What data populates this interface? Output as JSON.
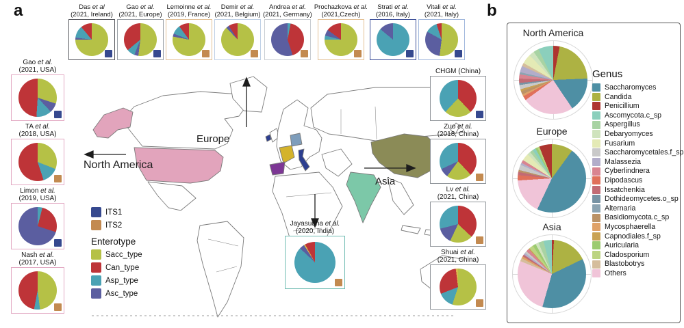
{
  "panel_a_label": "a",
  "panel_b_label": "b",
  "map_labels": {
    "europe": "Europe",
    "north_america": "North America",
    "asia": "Asia"
  },
  "its_legend": {
    "items": [
      {
        "label": "ITS1",
        "color": "#36498F"
      },
      {
        "label": "ITS2",
        "color": "#C38A50"
      }
    ]
  },
  "enterotype_legend": {
    "title": "Enterotype",
    "items": [
      {
        "label": "Sacc_type",
        "color": "#B5C146"
      },
      {
        "label": "Can_type",
        "color": "#BE3438"
      },
      {
        "label": "Asp_type",
        "color": "#4AA2B4"
      },
      {
        "label": "Asc_type",
        "color": "#5B5EA0"
      }
    ]
  },
  "map_colors": {
    "usa": "#E2A4BC",
    "alaska": "#E2A4BC",
    "ireland": "#2C3E90",
    "france": "#D4B32B",
    "germany": "#7E9DBB",
    "spain": "#7D3795",
    "italy": "#2C3E90",
    "china": "#8B8B57",
    "india": "#7CC8A8"
  },
  "chart_data": {
    "type": "pie",
    "enterotype_colors": {
      "Sacc_type": "#B5C146",
      "Can_type": "#BE3438",
      "Asp_type": "#4AA2B4",
      "Asc_type": "#5B5EA0",
      "Other": "#D8B94B"
    },
    "panel_a": {
      "top": [
        {
          "name": "Das",
          "etal": "et al",
          "info": "(2021, Ireland)",
          "its": "ITS1",
          "border": "#55565C",
          "slices": [
            [
              "Sacc_type",
              75
            ],
            [
              "Asc_type",
              2
            ],
            [
              "Asp_type",
              12
            ],
            [
              "Can_type",
              11
            ]
          ]
        },
        {
          "name": "Gao",
          "etal": "et al.",
          "info": "(2021, Europe)",
          "its": "ITS1",
          "border": "#9AA0A6",
          "slices": [
            [
              "Sacc_type",
              52
            ],
            [
              "Asc_type",
              4
            ],
            [
              "Asp_type",
              8
            ],
            [
              "Can_type",
              36
            ]
          ]
        },
        {
          "name": "Lemoinne",
          "etal": "et al.",
          "info": "(2019, France)",
          "its": "ITS2",
          "border": "#E3C094",
          "slices": [
            [
              "Sacc_type",
              78
            ],
            [
              "Asc_type",
              3
            ],
            [
              "Asp_type",
              9
            ],
            [
              "Can_type",
              10
            ]
          ]
        },
        {
          "name": "Demir",
          "etal": "et al.",
          "info": "(2021, Belgium)",
          "its": "ITS2",
          "border": "#BFD0E6",
          "slices": [
            [
              "Sacc_type",
              88
            ],
            [
              "Asc_type",
              3
            ],
            [
              "Can_type",
              9
            ]
          ]
        },
        {
          "name": "Andrea",
          "etal": "et al.",
          "info": "(2021, Germany)",
          "its": "ITS2",
          "border": "#C9CDD2",
          "slices": [
            [
              "Asp_type",
              3
            ],
            [
              "Can_type",
              42
            ],
            [
              "Asc_type",
              55
            ]
          ]
        },
        {
          "name": "Prochazkova",
          "etal": "et al.",
          "info": "(2021,Czech)",
          "its": "ITS2",
          "border": "#E3C094",
          "slices": [
            [
              "Sacc_type",
              75
            ],
            [
              "Asp_type",
              4
            ],
            [
              "Asc_type",
              6
            ],
            [
              "Can_type",
              15
            ]
          ]
        },
        {
          "name": "Strati",
          "etal": "et al.",
          "info": "(2016, Italy)",
          "its": "ITS1",
          "border": "#3A4C97",
          "slices": [
            [
              "Asp_type",
              86
            ],
            [
              "Asc_type",
              14
            ]
          ]
        },
        {
          "name": "Vitali",
          "etal": "et al.",
          "info": "(2021, Italy)",
          "its": "ITS1",
          "border": "#9FB6DC",
          "slices": [
            [
              "Sacc_type",
              52
            ],
            [
              "Asc_type",
              31
            ],
            [
              "Asp_type",
              12
            ],
            [
              "Can_type",
              5
            ]
          ]
        }
      ],
      "left": [
        {
          "name": "Gao",
          "etal": "et al.",
          "info": "(2021, USA)",
          "its": "ITS1",
          "border": "#E2A8C2",
          "slices": [
            [
              "Sacc_type",
              30
            ],
            [
              "Asc_type",
              8
            ],
            [
              "Asp_type",
              13
            ],
            [
              "Can_type",
              49
            ]
          ]
        },
        {
          "name": "TA",
          "etal": "et al.",
          "info": "(2018, USA)",
          "its": "ITS2",
          "border": "#E2A8C2",
          "slices": [
            [
              "Sacc_type",
              31
            ],
            [
              "Asp_type",
              14
            ],
            [
              "Can_type",
              55
            ]
          ]
        },
        {
          "name": "Limon",
          "etal": "et al.",
          "info": "(2019, USA)",
          "its": "ITS1",
          "border": "#E2A8C2",
          "slices": [
            [
              "Asp_type",
              4
            ],
            [
              "Can_type",
              26
            ],
            [
              "Asc_type",
              70
            ]
          ]
        },
        {
          "name": "Nash",
          "etal": "et al.",
          "info": "(2017, USA)",
          "its": "ITS2",
          "border": "#E2A8C2",
          "slices": [
            [
              "Sacc_type",
              48
            ],
            [
              "Asp_type",
              5
            ],
            [
              "Can_type",
              47
            ]
          ]
        }
      ],
      "right": [
        {
          "name": "CHGM",
          "etal": "",
          "info": "(China)",
          "one_line": true,
          "its": "ITS1",
          "border": "#8F9499",
          "slices": [
            [
              "Can_type",
              38
            ],
            [
              "Sacc_type",
              24
            ],
            [
              "Asp_type",
              38
            ]
          ]
        },
        {
          "name": "Zuo",
          "etal": "et al.",
          "info": "(2018, China)",
          "its": "ITS2",
          "border": "#8F9499",
          "slices": [
            [
              "Can_type",
              38
            ],
            [
              "Sacc_type",
              22
            ],
            [
              "Asc_type",
              8
            ],
            [
              "Asp_type",
              32
            ]
          ]
        },
        {
          "name": "Lv",
          "etal": "et al.",
          "info": "(2021, China)",
          "its": "ITS2",
          "border": "#8F9499",
          "slices": [
            [
              "Can_type",
              37
            ],
            [
              "Sacc_type",
              20
            ],
            [
              "Asc_type",
              14
            ],
            [
              "Asp_type",
              29
            ]
          ]
        },
        {
          "name": "Shuai",
          "etal": "et al.",
          "info": "(2021, China)",
          "its": "ITS2",
          "border": "#8F9499",
          "slices": [
            [
              "Sacc_type",
              55
            ],
            [
              "Asp_type",
              14
            ],
            [
              "Can_type",
              29
            ],
            [
              "Other",
              2
            ]
          ]
        }
      ],
      "india": {
        "name": "Jayasudha",
        "etal": "et al.",
        "info": "(2020, India)",
        "its": "ITS2",
        "border": "#6FBBB2",
        "slices": [
          [
            "Asp_type",
            87
          ],
          [
            "Asc_type",
            4
          ],
          [
            "Other",
            1
          ],
          [
            "Can_type",
            8
          ]
        ]
      }
    },
    "panel_b": {
      "genus_legend_title": "Genus",
      "genus": [
        {
          "label": "Saccharomyces",
          "color": "#4E8FA4"
        },
        {
          "label": "Candida",
          "color": "#ADB243"
        },
        {
          "label": "Penicillium",
          "color": "#AE352F"
        },
        {
          "label": "Ascomycota.c_sp",
          "color": "#8BCFBC"
        },
        {
          "label": "Aspergillus",
          "color": "#A8D3A3"
        },
        {
          "label": "Debaryomyces",
          "color": "#CFE3BD"
        },
        {
          "label": "Fusarium",
          "color": "#E4EAB5"
        },
        {
          "label": "Saccharomycetales.f_sp",
          "color": "#C9C9C9"
        },
        {
          "label": "Malassezia",
          "color": "#B2ADCA"
        },
        {
          "label": "Cyberlindnera",
          "color": "#D98490"
        },
        {
          "label": "Dipodascus",
          "color": "#E0705A"
        },
        {
          "label": "Issatchenkia",
          "color": "#C26B74"
        },
        {
          "label": "Dothideomycetes.o_sp",
          "color": "#7793A4"
        },
        {
          "label": "Alternaria",
          "color": "#8CA4B2"
        },
        {
          "label": "Basidiomycota.c_sp",
          "color": "#BB9266"
        },
        {
          "label": "Mycosphaerella",
          "color": "#DFA167"
        },
        {
          "label": "Capnodiales.f_sp",
          "color": "#C9A253"
        },
        {
          "label": "Auricularia",
          "color": "#9CCB70"
        },
        {
          "label": "Cladosporium",
          "color": "#BCD481"
        },
        {
          "label": "Blastobotrys",
          "color": "#D5BD9C"
        },
        {
          "label": "Others",
          "color": "#F0C4D8"
        }
      ],
      "regions": [
        {
          "title": "North America",
          "slices": [
            [
              "Penicillium",
              3
            ],
            [
              "Candida",
              21
            ],
            [
              "Saccharomyces",
              16
            ],
            [
              "Others",
              24
            ],
            [
              "Dipodascus",
              2
            ],
            [
              "Mycosphaerella",
              1
            ],
            [
              "Basidiomycota.c_sp",
              1.5
            ],
            [
              "Capnodiales.f_sp",
              1
            ],
            [
              "Saccharomycetales.f_sp",
              2
            ],
            [
              "Dothideomycetes.o_sp",
              1
            ],
            [
              "Issatchenkia",
              2
            ],
            [
              "Cyberlindnera",
              2
            ],
            [
              "Alternaria",
              1
            ],
            [
              "Malassezia",
              3
            ],
            [
              "Blastobotrys",
              1.5
            ],
            [
              "Fusarium",
              4.5
            ],
            [
              "Debaryomyces",
              2.5
            ],
            [
              "Aspergillus",
              2.5
            ],
            [
              "Ascomycota.c_sp",
              7
            ]
          ]
        },
        {
          "title": "Europe",
          "slices": [
            [
              "Candida",
              10
            ],
            [
              "Saccharomyces",
              47
            ],
            [
              "Others",
              17
            ],
            [
              "Dipodascus",
              2.5
            ],
            [
              "Issatchenkia",
              1.5
            ],
            [
              "Basidiomycota.c_sp",
              1
            ],
            [
              "Saccharomycetales.f_sp",
              2.5
            ],
            [
              "Malassezia",
              1
            ],
            [
              "Cyberlindnera",
              1.5
            ],
            [
              "Fusarium",
              3.5
            ],
            [
              "Debaryomyces",
              1.5
            ],
            [
              "Aspergillus",
              1.5
            ],
            [
              "Ascomycota.c_sp",
              1.5
            ],
            [
              "Auricularia",
              1
            ],
            [
              "Cladosporium",
              1
            ],
            [
              "Penicillium",
              6
            ]
          ]
        },
        {
          "title": "Asia",
          "slices": [
            [
              "Penicillium",
              1
            ],
            [
              "Candida",
              17
            ],
            [
              "Saccharomyces",
              37
            ],
            [
              "Others",
              27
            ],
            [
              "Blastobotrys",
              1.5
            ],
            [
              "Mycosphaerella",
              1
            ],
            [
              "Issatchenkia",
              1
            ],
            [
              "Malassezia",
              1
            ],
            [
              "Saccharomycetales.f_sp",
              1
            ],
            [
              "Cyberlindnera",
              1.5
            ],
            [
              "Capnodiales.f_sp",
              0.5
            ],
            [
              "Cladosporium",
              2
            ],
            [
              "Auricularia",
              1.5
            ],
            [
              "Debaryomyces",
              1.5
            ],
            [
              "Aspergillus",
              2.5
            ],
            [
              "Ascomycota.c_sp",
              4
            ]
          ]
        }
      ]
    }
  }
}
